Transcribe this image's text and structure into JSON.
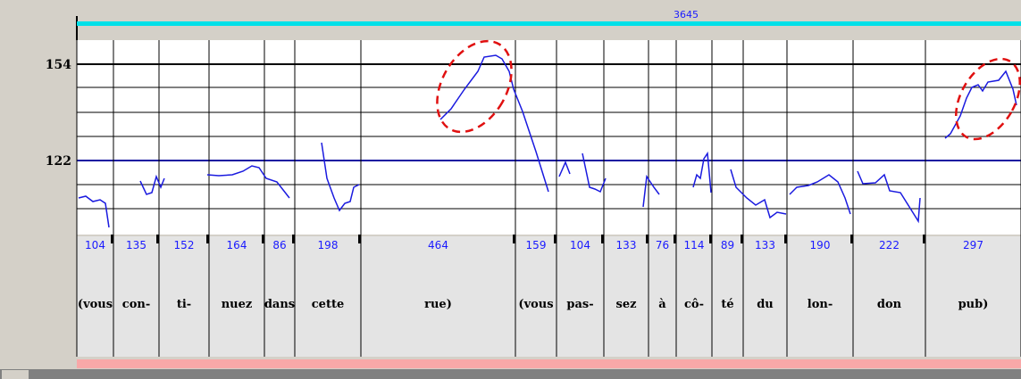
{
  "header": {
    "total": "3645"
  },
  "axis": {
    "labels": [
      "154",
      "122"
    ]
  },
  "segments": [
    {
      "duration": "104",
      "syllable": "(vous"
    },
    {
      "duration": "135",
      "syllable": "con-"
    },
    {
      "duration": "152",
      "syllable": "ti-"
    },
    {
      "duration": "164",
      "syllable": "nuez"
    },
    {
      "duration": "86",
      "syllable": "dans"
    },
    {
      "duration": "198",
      "syllable": "cette"
    },
    {
      "duration": "464",
      "syllable": "rue)"
    },
    {
      "duration": "159",
      "syllable": "(vous"
    },
    {
      "duration": "104",
      "syllable": "pas-"
    },
    {
      "duration": "133",
      "syllable": "sez"
    },
    {
      "duration": "76",
      "syllable": "à"
    },
    {
      "duration": "114",
      "syllable": "cô-"
    },
    {
      "duration": "89",
      "syllable": "té"
    },
    {
      "duration": "133",
      "syllable": "du"
    },
    {
      "duration": "190",
      "syllable": "lon-"
    },
    {
      "duration": "222",
      "syllable": "don"
    },
    {
      "duration": "297",
      "syllable": "pub)"
    }
  ]
}
